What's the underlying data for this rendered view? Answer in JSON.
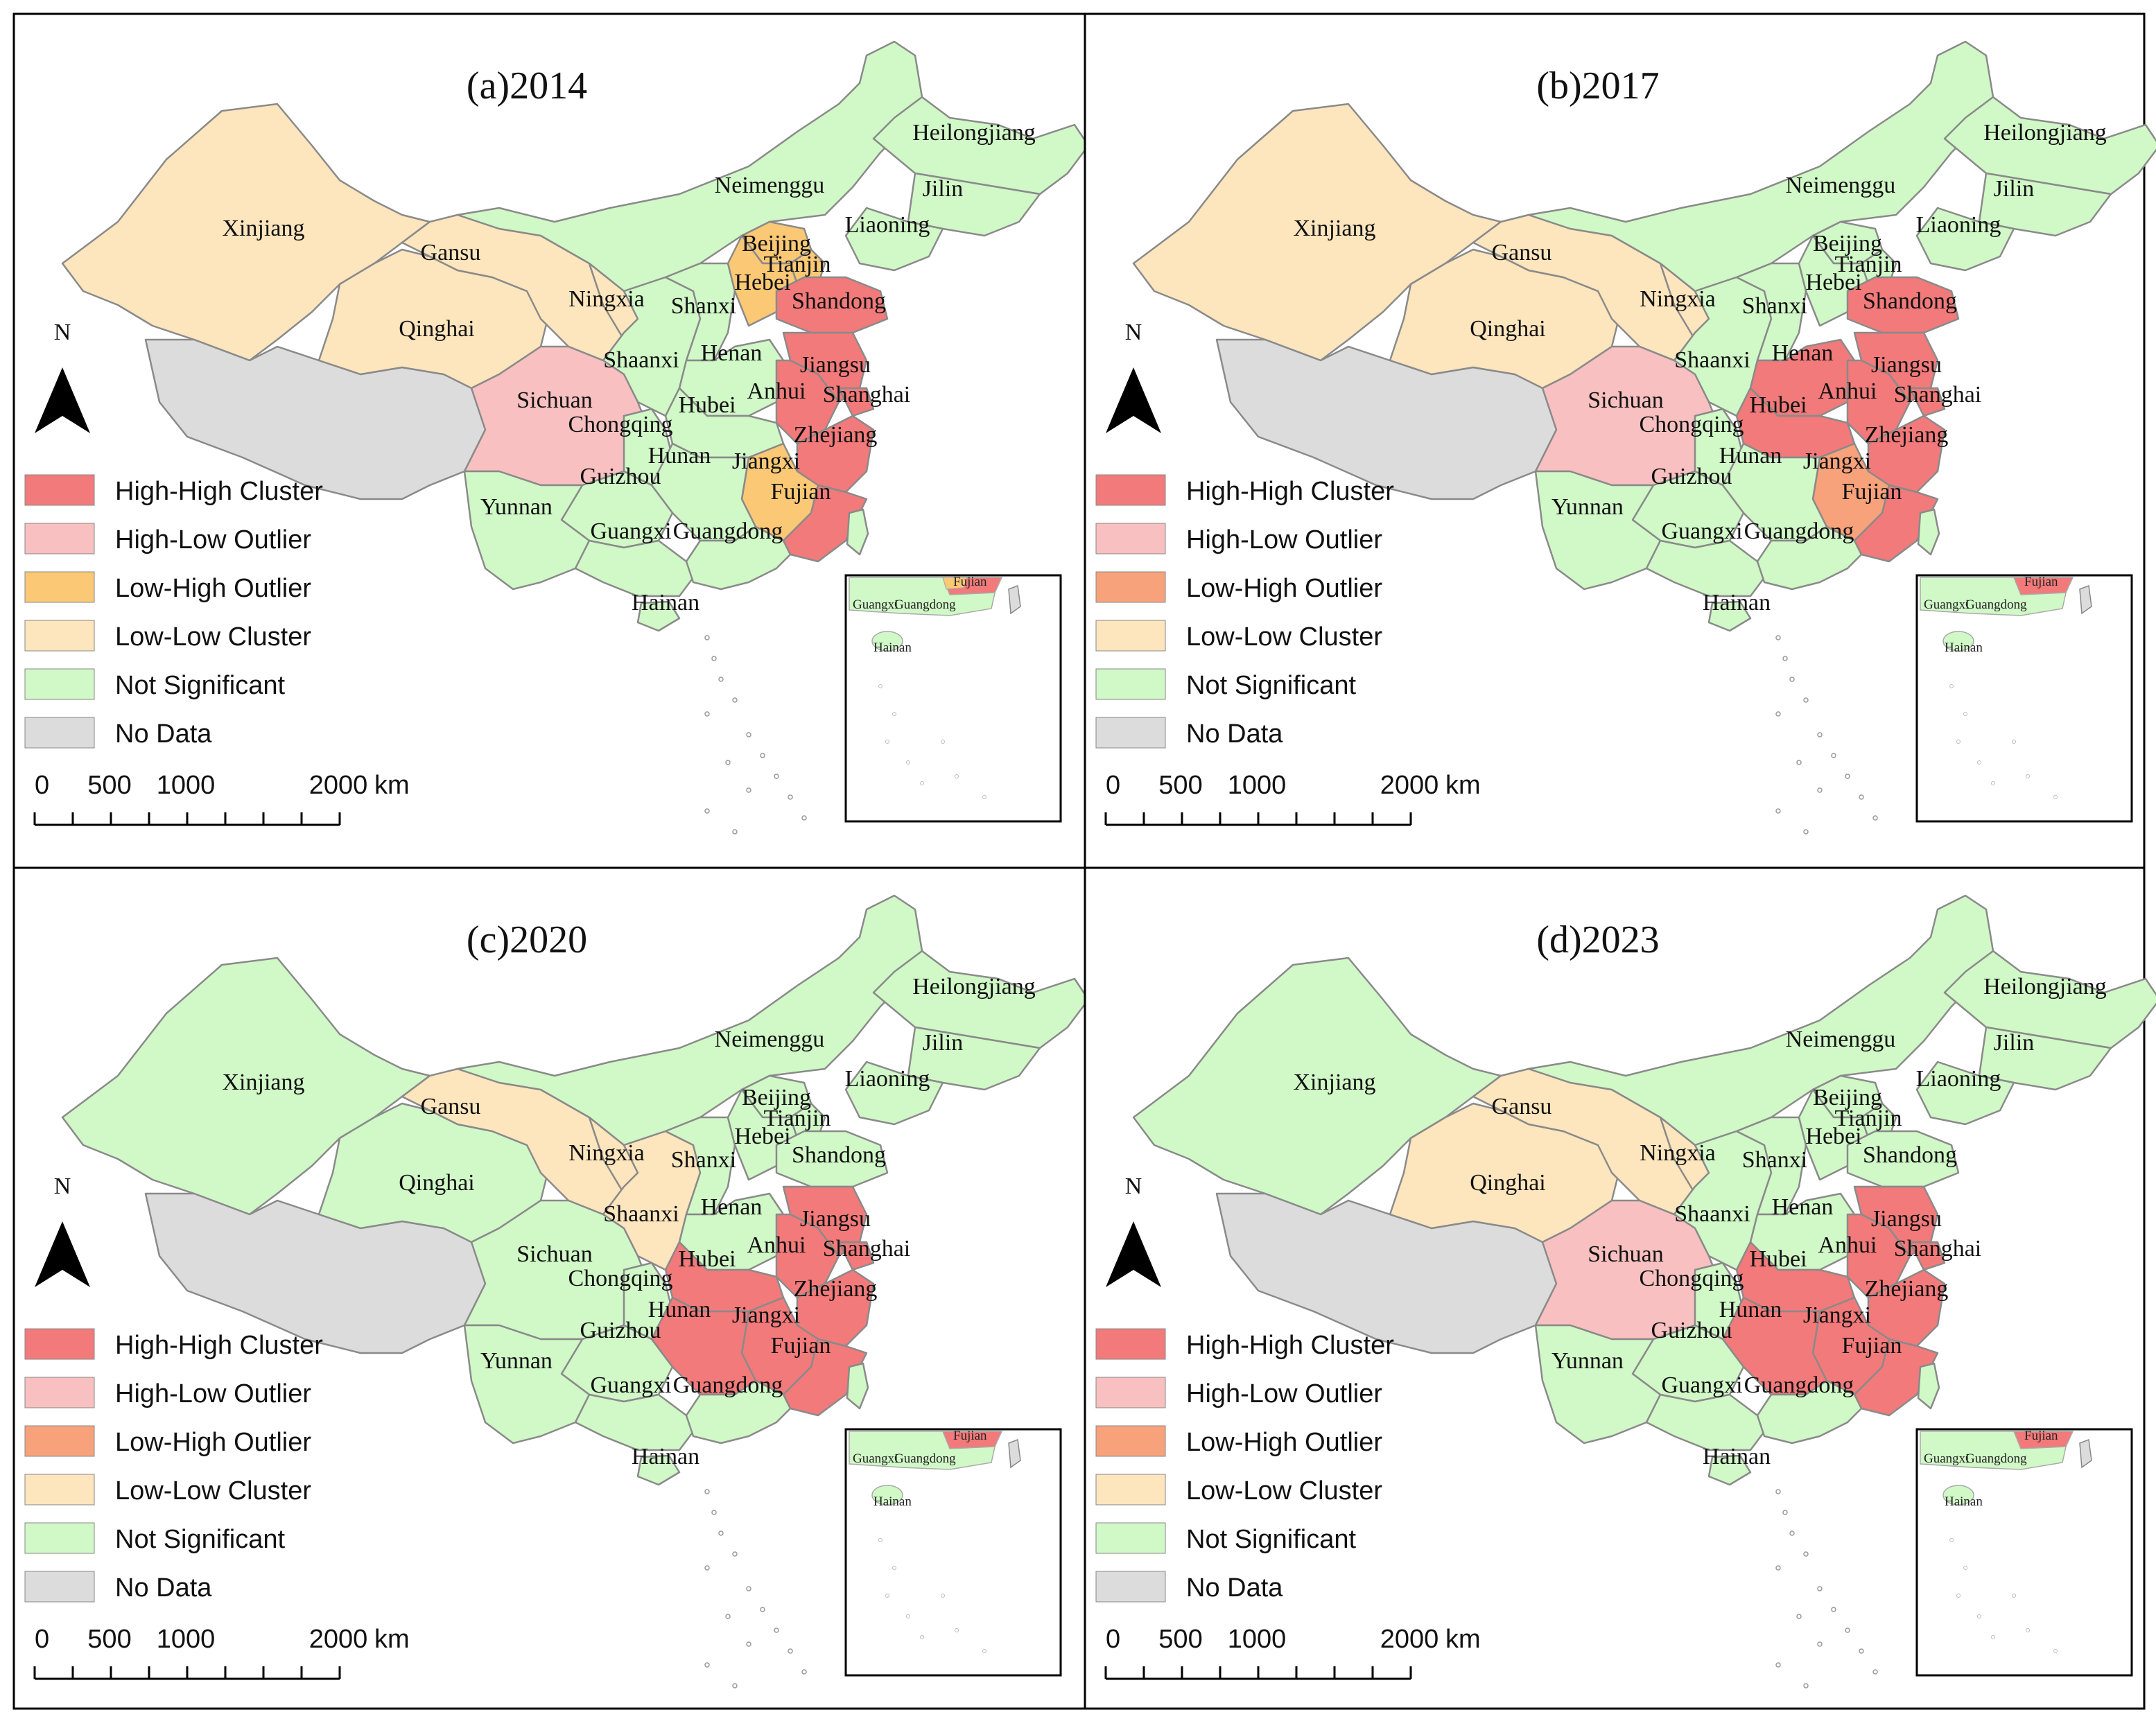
{
  "legend": [
    {
      "key": "HH",
      "label": "High-High Cluster"
    },
    {
      "key": "HL",
      "label": "High-Low Outlier"
    },
    {
      "key": "LH",
      "label": "Low-High Outlier"
    },
    {
      "key": "LL",
      "label": "Low-Low Cluster"
    },
    {
      "key": "NS",
      "label": "Not Significant"
    },
    {
      "key": "ND",
      "label": "No Data"
    }
  ],
  "colors": {
    "HH": "#f27a7a",
    "HL": "#f8c0c0",
    "LH_2014": "#fbc875",
    "LH": "#f7a27a",
    "LL": "#fde5bd",
    "NS": "#d1f8c7",
    "ND": "#dcdcdc",
    "sea": "#ffffff"
  },
  "north_label": "N",
  "scale_bar": {
    "ticks": [
      "0",
      "500",
      "1000",
      "2000"
    ],
    "unit": "km"
  },
  "inset_labels": {
    "fujian": "Fujian",
    "guangxi": "Guangxi",
    "guangdong": "Guangdong",
    "hainan": "Hainan"
  },
  "panels": [
    {
      "title": "(a)2014",
      "classes": {
        "Xinjiang": "LL",
        "Gansu": "LL",
        "Qinghai": "LL",
        "Ningxia": "LL",
        "Xizang": "ND",
        "Sichuan": "HL",
        "Beijing": "LH",
        "Tianjin": "LH",
        "Hebei": "LH",
        "Jiangxi": "LH",
        "Shandong": "HH",
        "Jiangsu": "HH",
        "Anhui": "HH",
        "Shanghai": "HH",
        "Zhejiang": "HH",
        "Fujian": "HH",
        "Neimenggu": "NS",
        "Heilongjiang": "NS",
        "Jilin": "NS",
        "Liaoning": "NS",
        "Shanxi": "NS",
        "Shaanxi": "NS",
        "Henan": "NS",
        "Hubei": "NS",
        "Hunan": "NS",
        "Chongqing": "NS",
        "Guizhou": "NS",
        "Yunnan": "NS",
        "Guangxi": "NS",
        "Guangdong": "NS",
        "Hainan": "NS",
        "Taiwan": "NS"
      }
    },
    {
      "title": "(b)2017",
      "classes": {
        "Xinjiang": "LL",
        "Gansu": "LL",
        "Qinghai": "LL",
        "Ningxia": "LL",
        "Xizang": "ND",
        "Sichuan": "HL",
        "Jiangxi": "LH",
        "Shandong": "HH",
        "Henan": "HH",
        "Hubei": "HH",
        "Jiangsu": "HH",
        "Anhui": "HH",
        "Shanghai": "HH",
        "Zhejiang": "HH",
        "Fujian": "HH",
        "Neimenggu": "NS",
        "Heilongjiang": "NS",
        "Jilin": "NS",
        "Liaoning": "NS",
        "Beijing": "NS",
        "Tianjin": "NS",
        "Hebei": "NS",
        "Shanxi": "NS",
        "Shaanxi": "NS",
        "Hunan": "NS",
        "Chongqing": "NS",
        "Guizhou": "NS",
        "Yunnan": "NS",
        "Guangxi": "NS",
        "Guangdong": "NS",
        "Hainan": "NS",
        "Taiwan": "NS"
      }
    },
    {
      "title": "(c)2020",
      "classes": {
        "Gansu": "LL",
        "Ningxia": "LL",
        "Shaanxi": "LL",
        "Xizang": "ND",
        "Hubei": "HH",
        "Hunan": "HH",
        "Jiangxi": "HH",
        "Anhui": "HH",
        "Jiangsu": "HH",
        "Shanghai": "HH",
        "Zhejiang": "HH",
        "Fujian": "HH",
        "Xinjiang": "NS",
        "Qinghai": "NS",
        "Sichuan": "NS",
        "Neimenggu": "NS",
        "Heilongjiang": "NS",
        "Jilin": "NS",
        "Liaoning": "NS",
        "Beijing": "NS",
        "Tianjin": "NS",
        "Hebei": "NS",
        "Shandong": "NS",
        "Shanxi": "NS",
        "Henan": "NS",
        "Chongqing": "NS",
        "Guizhou": "NS",
        "Yunnan": "NS",
        "Guangxi": "NS",
        "Guangdong": "NS",
        "Hainan": "NS",
        "Taiwan": "NS"
      }
    },
    {
      "title": "(d)2023",
      "classes": {
        "Gansu": "LL",
        "Qinghai": "LL",
        "Ningxia": "LL",
        "Xizang": "ND",
        "Sichuan": "HL",
        "Hubei": "HH",
        "Hunan": "HH",
        "Jiangxi": "HH",
        "Anhui": "HH",
        "Jiangsu": "HH",
        "Shanghai": "HH",
        "Zhejiang": "HH",
        "Fujian": "HH",
        "Xinjiang": "NS",
        "Neimenggu": "NS",
        "Heilongjiang": "NS",
        "Jilin": "NS",
        "Liaoning": "NS",
        "Beijing": "NS",
        "Tianjin": "NS",
        "Hebei": "NS",
        "Shandong": "NS",
        "Shanxi": "NS",
        "Shaanxi": "NS",
        "Henan": "NS",
        "Chongqing": "NS",
        "Guizhou": "NS",
        "Yunnan": "NS",
        "Guangxi": "NS",
        "Guangdong": "NS",
        "Hainan": "NS",
        "Taiwan": "NS"
      }
    }
  ],
  "province_labels": {
    "Xinjiang": "Xinjiang",
    "Gansu": "Gansu",
    "Qinghai": "Qinghai",
    "Ningxia": "Ningxia",
    "Neimenggu": "Neimenggu",
    "Heilongjiang": "Heilongjiang",
    "Jilin": "Jilin",
    "Liaoning": "Liaoning",
    "Beijing": "Beijing",
    "Tianjin": "Tianjin",
    "Hebei": "Hebei",
    "Shanxi": "Shanxi",
    "Shandong": "Shandong",
    "Shaanxi": "Shaanxi",
    "Henan": "Henan",
    "Jiangsu": "Jiangsu",
    "Anhui": "Anhui",
    "Shanghai": "Shanghai",
    "Sichuan": "Sichuan",
    "Chongqing": "Chongqing",
    "Hubei": "Hubei",
    "Zhejiang": "Zhejiang",
    "Hunan": "Hunan",
    "Jiangxi": "Jiangxi",
    "Guizhou": "Guizhou",
    "Yunnan": "Yunnan",
    "Fujian": "Fujian",
    "Guangxi": "Guangxi",
    "Guangdong": "Guangdong",
    "Hainan": "Hainan"
  }
}
